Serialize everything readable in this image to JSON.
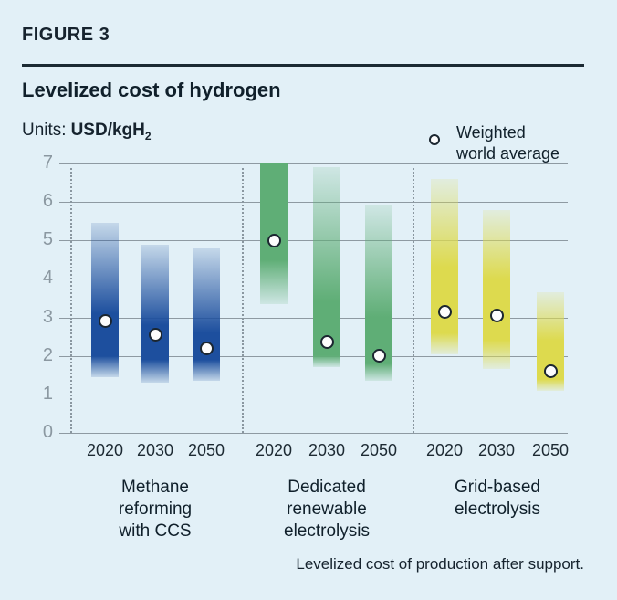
{
  "figure_label": "FIGURE 3",
  "title": "Levelized cost of hydrogen",
  "units": {
    "label": "Units:",
    "value": "USD/kgH",
    "value_sub": "2"
  },
  "legend": {
    "marker": "weighted-average-dot",
    "text": "Weighted\nworld average"
  },
  "footer": "Levelized cost of production after support.",
  "colors": {
    "background": "#e2f0f7",
    "text_dark": "#10202b",
    "gridline": "#8e9aa2",
    "axis_tick_text": "#8b98a1",
    "methane_blue": "#1d4f9e",
    "renewable_green": "#6fb783",
    "grid_yellow": "#e0dd55",
    "marker_fill": "#fdfdfd",
    "marker_ring": "#1b2630"
  },
  "chart_data": {
    "type": "bar",
    "subtype": "floating-range-bars-with-average-markers",
    "title": "Levelized cost of hydrogen",
    "ylabel": "USD/kgH2",
    "ylim": [
      0,
      7
    ],
    "yticks": [
      "0",
      "1",
      "2",
      "3",
      "4",
      "5",
      "6",
      "7"
    ],
    "grid": true,
    "legend_position": "top-right",
    "legend_entry": "Weighted world average",
    "groups": [
      {
        "label": "Methane reforming with CCS",
        "label_lines": [
          "Methane",
          "reforming",
          "with CCS"
        ],
        "color": "#1d4f9e",
        "bars": [
          {
            "year": "2020",
            "min": 1.45,
            "max": 5.45,
            "weighted_avg": 2.9,
            "dark_lo": 2.0,
            "dark_hi": 3.1
          },
          {
            "year": "2030",
            "min": 1.3,
            "max": 4.9,
            "weighted_avg": 2.55,
            "dark_lo": 1.9,
            "dark_hi": 2.8
          },
          {
            "year": "2050",
            "min": 1.35,
            "max": 4.8,
            "weighted_avg": 2.2,
            "dark_lo": 1.9,
            "dark_hi": 2.6
          }
        ]
      },
      {
        "label": "Dedicated renewable electrolysis",
        "label_lines": [
          "Dedicated",
          "renewable",
          "electrolysis"
        ],
        "color": "#5fae76",
        "bars": [
          {
            "year": "2020",
            "min": 3.35,
            "max": 7.0,
            "weighted_avg": 5.0,
            "dark_lo": 4.5,
            "dark_hi": 7.0
          },
          {
            "year": "2030",
            "min": 1.7,
            "max": 6.9,
            "weighted_avg": 2.35,
            "dark_lo": 2.0,
            "dark_hi": 3.4
          },
          {
            "year": "2050",
            "min": 1.35,
            "max": 5.9,
            "weighted_avg": 2.0,
            "dark_lo": 1.8,
            "dark_hi": 3.0
          }
        ]
      },
      {
        "label": "Grid-based electrolysis",
        "label_lines": [
          "Grid-based",
          "electrolysis"
        ],
        "color": "#ddda4e",
        "bars": [
          {
            "year": "2020",
            "min": 2.05,
            "max": 6.6,
            "weighted_avg": 3.15,
            "dark_lo": 2.6,
            "dark_hi": 4.3
          },
          {
            "year": "2030",
            "min": 1.65,
            "max": 5.8,
            "weighted_avg": 3.05,
            "dark_lo": 2.4,
            "dark_hi": 4.0
          },
          {
            "year": "2050",
            "min": 1.1,
            "max": 3.65,
            "weighted_avg": 1.6,
            "dark_lo": 1.4,
            "dark_hi": 2.4
          }
        ]
      }
    ]
  }
}
